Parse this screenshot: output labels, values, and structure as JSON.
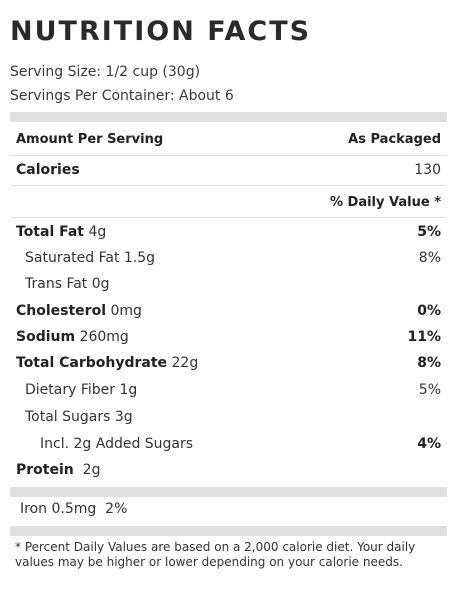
{
  "header": {
    "title": "NUTRITION FACTS",
    "serving_size": "Serving Size: 1/2 cup (30g)",
    "servings_per_container": "Servings Per Container: About 6"
  },
  "table": {
    "amount_per_serving": "Amount Per Serving",
    "as_packaged": "As Packaged",
    "calories_label": "Calories",
    "calories_value": "130",
    "daily_value_header": "% Daily Value *",
    "nutrients": {
      "total_fat": {
        "label": "Total Fat",
        "amount": "4g",
        "dv": "5%"
      },
      "saturated_fat": {
        "label": "Saturated Fat 1.5g",
        "dv": "8%"
      },
      "trans_fat": {
        "label": "Trans Fat 0g"
      },
      "cholesterol": {
        "label": "Cholesterol",
        "amount": "0mg",
        "dv": "0%"
      },
      "sodium": {
        "label": "Sodium",
        "amount": "260mg",
        "dv": "11%"
      },
      "total_carbohydrate": {
        "label": "Total Carbohydrate",
        "amount": "22g",
        "dv": "8%"
      },
      "dietary_fiber": {
        "label": "Dietary Fiber 1g",
        "dv": "5%"
      },
      "total_sugars": {
        "label": "Total Sugars 3g"
      },
      "added_sugars": {
        "label": "Incl. 2g Added Sugars",
        "dv": "4%"
      },
      "protein": {
        "label": "Protein",
        "amount": "2g"
      }
    },
    "iron": "Iron 0.5mg  2%"
  },
  "footer": {
    "note": "* Percent Daily Values are based on a 2,000 calorie diet. Your daily values may be higher or lower depending on your calorie needs."
  },
  "colors": {
    "bar": "#e0e0e0",
    "divider": "#e2e2e2",
    "text": "#333333"
  }
}
